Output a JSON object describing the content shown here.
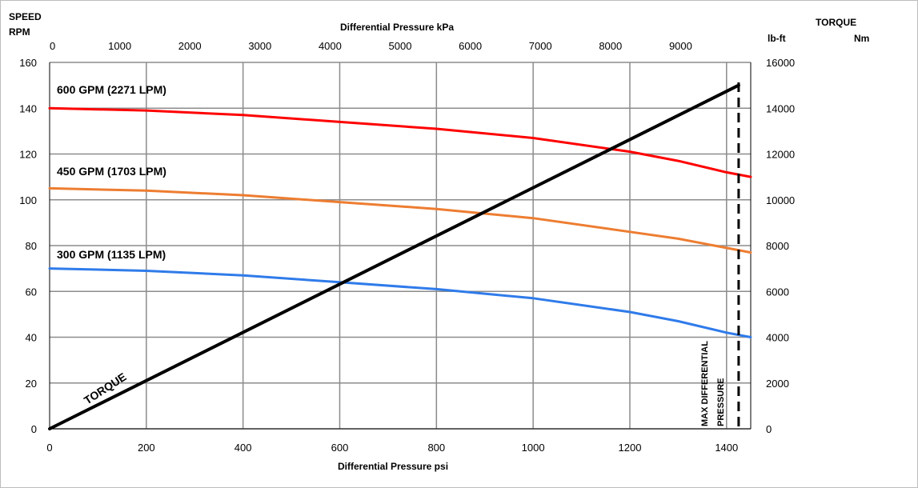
{
  "chart_data": {
    "type": "line",
    "axes": {
      "bottom": {
        "title": "Differential Pressure psi",
        "range": [
          0,
          1450
        ],
        "ticks": [
          0,
          200,
          400,
          600,
          800,
          1000,
          1200,
          1400
        ]
      },
      "top": {
        "title": "Differential Pressure kPa",
        "range": [
          0,
          10000
        ],
        "ticks": [
          0,
          1000,
          2000,
          3000,
          4000,
          5000,
          6000,
          7000,
          8000,
          9000
        ]
      },
      "left": {
        "title_line1": "SPEED",
        "title_line2": "RPM",
        "range": [
          0,
          160
        ],
        "ticks": [
          0,
          20,
          40,
          60,
          80,
          100,
          120,
          140,
          160
        ]
      },
      "right": {
        "title_line1": "TORQUE",
        "title_unit1": "lb-ft",
        "title_unit2": "Nm",
        "range": [
          0,
          16000
        ],
        "ticks": [
          0,
          2000,
          4000,
          6000,
          8000,
          10000,
          12000,
          14000,
          16000
        ]
      }
    },
    "grid": true,
    "series": [
      {
        "name": "600 GPM (2271 LPM)",
        "color": "#ff0000",
        "axis": "left",
        "x": [
          0,
          200,
          400,
          600,
          800,
          1000,
          1200,
          1300,
          1400,
          1450
        ],
        "y": [
          140,
          139,
          137,
          134,
          131,
          127,
          121,
          117,
          112,
          110
        ]
      },
      {
        "name": "450 GPM (1703 LPM)",
        "color": "#ed7d31",
        "axis": "left",
        "x": [
          0,
          200,
          400,
          600,
          800,
          1000,
          1200,
          1300,
          1400,
          1450
        ],
        "y": [
          105,
          104,
          102,
          99,
          96,
          92,
          86,
          83,
          79,
          77
        ]
      },
      {
        "name": "300 GPM (1135 LPM)",
        "color": "#2f7bea",
        "axis": "left",
        "x": [
          0,
          200,
          400,
          600,
          800,
          1000,
          1200,
          1300,
          1400,
          1450
        ],
        "y": [
          70,
          69,
          67,
          64,
          61,
          57,
          51,
          47,
          42,
          40
        ]
      },
      {
        "name": "TORQUE",
        "color": "#000000",
        "axis": "right",
        "x": [
          0,
          1425
        ],
        "y": [
          0,
          15000
        ]
      }
    ],
    "annotations": [
      {
        "text_line1": "MAX DIFFERENTIAL",
        "text_line2": "PRESSURE",
        "x": 1425
      }
    ]
  }
}
